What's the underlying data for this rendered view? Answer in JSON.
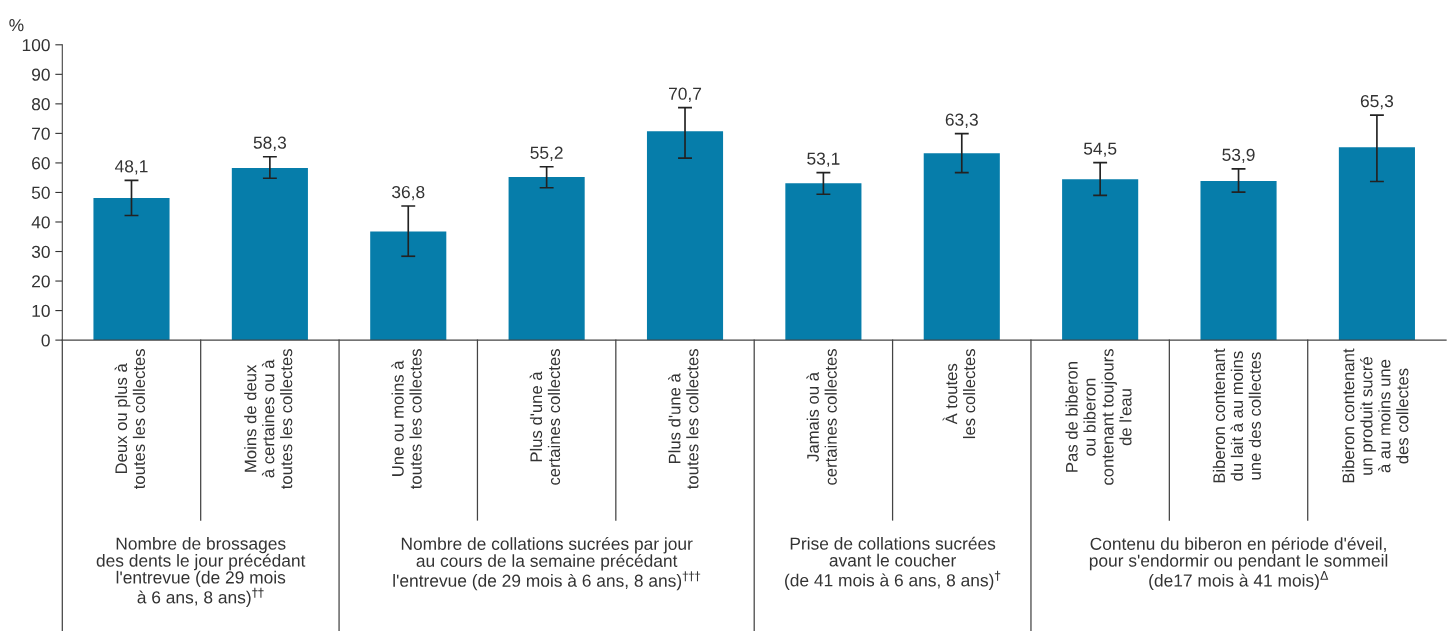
{
  "chart_data": {
    "type": "bar",
    "ylabel": "%",
    "categories": [
      "Deux ou plus à\ntoutes les collectes",
      "Moins de deux\nà certaines ou à\ntoutes les collectes",
      "Une ou moins à\ntoutes les collectes",
      "Plus d'une à\ncertaines collectes",
      "Plus d'une à\ntoutes les collectes",
      "Jamais ou à\ncertaines collectes",
      "À toutes\nles collectes",
      "Pas de biberon\nou biberon\ncontenant toujours\nde l'eau",
      "Biberon contenant\ndu lait à au moins\nune des collectes",
      "Biberon contenant\nun produit sucré\nà au moins une\ndes collectes"
    ],
    "values": [
      48.1,
      58.3,
      36.8,
      55.2,
      70.7,
      53.1,
      63.3,
      54.5,
      53.9,
      65.3
    ],
    "errors": [
      [
        42.2,
        54.1
      ],
      [
        54.8,
        62.1
      ],
      [
        28.4,
        45.4
      ],
      [
        51.6,
        58.7
      ],
      [
        61.6,
        78.7
      ],
      [
        49.4,
        56.7
      ],
      [
        56.7,
        69.9
      ],
      [
        49.0,
        60.1
      ],
      [
        50.1,
        58.0
      ],
      [
        53.7,
        76.2
      ]
    ],
    "value_labels": [
      "48,1",
      "58,3",
      "36,8",
      "55,2",
      "70,7",
      "53,1",
      "63,3",
      "54,5",
      "53,9",
      "65,3"
    ],
    "color": "#067daa",
    "grid": false,
    "legend": false,
    "ylim": [
      0,
      100
    ],
    "yticks": [
      0,
      10,
      20,
      30,
      40,
      50,
      60,
      70,
      80,
      90,
      100
    ],
    "annotations": [
      "Nombre de brossages\ndes dents le jour précédant\nl'entrevue (de 29 mois\nà 6 ans, 8 ans)$^{††}$",
      "Nombre de collations sucrées par jour\nau cours de la semaine précédant\nl'entrevue (de 29 mois à 6 ans, 8 ans)$^{†††}$",
      "Prise de collations sucrées\navant le coucher\n(de 41 mois à 6 ans, 8 ans)$^{†}$",
      "Contenu du biberon en période d'éveil,\npour s'endormir ou pendant le sommeil\n(de17 mois à 41 mois)$^{Δ}$"
    ]
  }
}
